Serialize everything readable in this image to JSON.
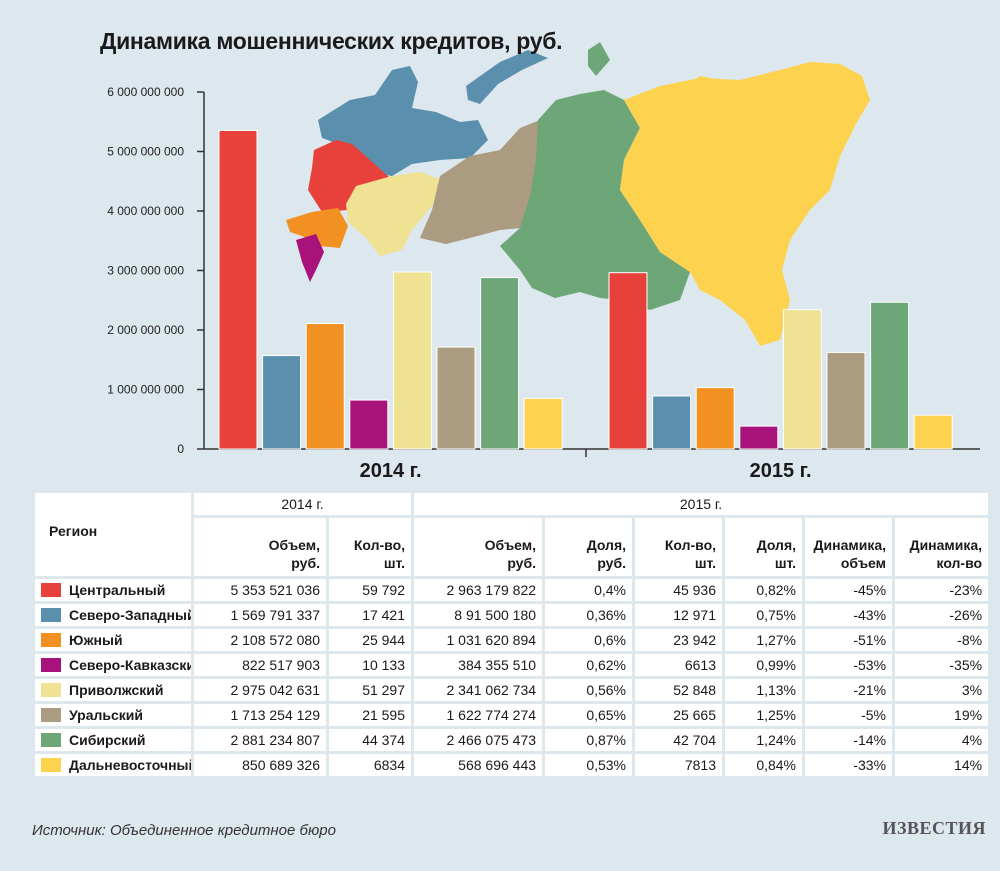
{
  "title": "Динамика мошеннических кредитов, руб.",
  "chart_data": {
    "type": "bar",
    "groups": [
      "2014 г.",
      "2015 г."
    ],
    "y_ticks": [
      "0",
      "1 000 000 000",
      "2 000 000 000",
      "3 000 000 000",
      "4 000 000 000",
      "5 000 000 000",
      "6 000 000 000"
    ],
    "ylim": [
      0,
      6000000000
    ],
    "series": [
      {
        "color": "#e8403a",
        "values": [
          5353521036,
          2963179822
        ]
      },
      {
        "color": "#5b8fae",
        "values": [
          1569791337,
          891500180
        ]
      },
      {
        "color": "#f29122",
        "values": [
          2108572080,
          1031620894
        ]
      },
      {
        "color": "#a7137a",
        "values": [
          822517903,
          384355510
        ]
      },
      {
        "color": "#efe293",
        "values": [
          2975042631,
          2341062734
        ]
      },
      {
        "color": "#ab9b80",
        "values": [
          1713254129,
          1622774274
        ]
      },
      {
        "color": "#6da778",
        "values": [
          2881234807,
          2466075473
        ]
      },
      {
        "color": "#fdd24f",
        "values": [
          850689326,
          568696443
        ]
      }
    ]
  },
  "table": {
    "region_header": "Регион",
    "year_2014": "2014 г.",
    "year_2015": "2015 г.",
    "columns": [
      [
        "Объем,",
        "руб."
      ],
      [
        "Кол-во,",
        "шт."
      ],
      [
        "Объем,",
        "руб."
      ],
      [
        "Доля,",
        "руб."
      ],
      [
        "Кол-во,",
        "шт."
      ],
      [
        "Доля,",
        "шт."
      ],
      [
        "Динамика,",
        "объем"
      ],
      [
        "Динамика,",
        "кол-во"
      ]
    ],
    "rows": [
      {
        "region": "Центральный",
        "color": "#e8403a",
        "cells": [
          "5 353 521 036",
          "59 792",
          "2 963 179 822",
          "0,4%",
          "45 936",
          "0,82%",
          "-45%",
          "-23%"
        ]
      },
      {
        "region": "Северо-Западный",
        "color": "#5b8fae",
        "cells": [
          "1 569 791 337",
          "17 421",
          "8 91 500 180",
          "0,36%",
          "12 971",
          "0,75%",
          "-43%",
          "-26%"
        ]
      },
      {
        "region": "Южный",
        "color": "#f29122",
        "cells": [
          "2 108 572 080",
          "25 944",
          "1 031 620 894",
          "0,6%",
          "23 942",
          "1,27%",
          "-51%",
          "-8%"
        ]
      },
      {
        "region": "Северо-Кавказский",
        "color": "#a7137a",
        "cells": [
          "822 517 903",
          "10 133",
          "384 355 510",
          "0,62%",
          "6613",
          "0,99%",
          "-53%",
          "-35%"
        ]
      },
      {
        "region": "Приволжский",
        "color": "#efe293",
        "cells": [
          "2 975 042 631",
          "51 297",
          "2 341 062 734",
          "0,56%",
          "52 848",
          "1,13%",
          "-21%",
          "3%"
        ]
      },
      {
        "region": "Уральский",
        "color": "#ab9b80",
        "cells": [
          "1 713 254 129",
          "21 595",
          "1 622 774 274",
          "0,65%",
          "25 665",
          "1,25%",
          "-5%",
          "19%"
        ]
      },
      {
        "region": "Сибирский",
        "color": "#6da778",
        "cells": [
          "2 881 234 807",
          "44 374",
          "2 466 075 473",
          "0,87%",
          "42 704",
          "1,24%",
          "-14%",
          "4%"
        ]
      },
      {
        "region": "Дальневосточный",
        "color": "#fdd24f",
        "cells": [
          "850 689 326",
          "6834",
          "568 696 443",
          "0,53%",
          "7813",
          "0,84%",
          "-33%",
          "14%"
        ]
      }
    ]
  },
  "source": "Источник: Объединенное кредитное бюро",
  "logo": "ИЗВЕСТИЯ"
}
